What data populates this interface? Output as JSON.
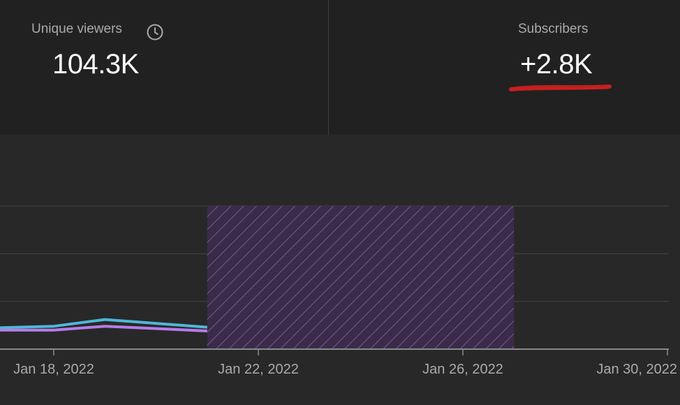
{
  "stats": {
    "unique_viewers": {
      "label": "Unique viewers",
      "value": "104.3K",
      "icon": "clock-icon"
    },
    "subscribers": {
      "label": "Subscribers",
      "value": "+2.8K",
      "annotation_color": "#d32020"
    }
  },
  "chart_data": {
    "type": "line",
    "x_tick_labels": [
      "Jan 18, 2022",
      "Jan 22, 2022",
      "Jan 26, 2022",
      "Jan 30, 2022"
    ],
    "series": [
      {
        "color": "#4fb6d8",
        "points": [
          {
            "x": "2022-01-16",
            "y": 0.43
          },
          {
            "x": "2022-01-17",
            "y": 0.45
          },
          {
            "x": "2022-01-18",
            "y": 0.48
          },
          {
            "x": "2022-01-19",
            "y": 0.62
          },
          {
            "x": "2022-01-21",
            "y": 0.46
          }
        ]
      },
      {
        "color": "#b57de8",
        "points": [
          {
            "x": "2022-01-16",
            "y": 0.4
          },
          {
            "x": "2022-01-17",
            "y": 0.4
          },
          {
            "x": "2022-01-18",
            "y": 0.4
          },
          {
            "x": "2022-01-19",
            "y": 0.48
          },
          {
            "x": "2022-01-21",
            "y": 0.38
          }
        ]
      }
    ],
    "hatched_range": {
      "start": "2022-01-21",
      "end": "2022-01-27",
      "color": "#8a5fb5"
    },
    "ylim": [
      0,
      3
    ],
    "gridlines": [
      1,
      2,
      3
    ],
    "grid": true,
    "colors": {
      "background": "#282828",
      "grid": "#444444",
      "baseline": "#8a8a8a",
      "tick_text": "#aaaaaa"
    }
  }
}
